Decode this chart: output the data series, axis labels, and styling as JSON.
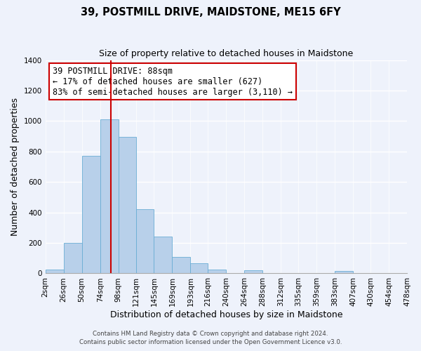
{
  "title": "39, POSTMILL DRIVE, MAIDSTONE, ME15 6FY",
  "subtitle": "Size of property relative to detached houses in Maidstone",
  "xlabel": "Distribution of detached houses by size in Maidstone",
  "ylabel": "Number of detached properties",
  "bar_edges": [
    2,
    26,
    50,
    74,
    98,
    121,
    145,
    169,
    193,
    216,
    240,
    264,
    288,
    312,
    335,
    359,
    383,
    407,
    430,
    454,
    478
  ],
  "bar_heights": [
    25,
    200,
    770,
    1010,
    895,
    420,
    240,
    110,
    65,
    25,
    0,
    20,
    0,
    0,
    0,
    0,
    15,
    0,
    0,
    0
  ],
  "bar_color": "#b8d0ea",
  "bar_edgecolor": "#6aadd5",
  "property_line_x": 88,
  "property_line_color": "#cc0000",
  "annotation_text": "39 POSTMILL DRIVE: 88sqm\n← 17% of detached houses are smaller (627)\n83% of semi-detached houses are larger (3,110) →",
  "annotation_box_edgecolor": "#cc0000",
  "ylim": [
    0,
    1400
  ],
  "yticks": [
    0,
    200,
    400,
    600,
    800,
    1000,
    1200,
    1400
  ],
  "xtick_labels": [
    "2sqm",
    "26sqm",
    "50sqm",
    "74sqm",
    "98sqm",
    "121sqm",
    "145sqm",
    "169sqm",
    "193sqm",
    "216sqm",
    "240sqm",
    "264sqm",
    "288sqm",
    "312sqm",
    "335sqm",
    "359sqm",
    "383sqm",
    "407sqm",
    "430sqm",
    "454sqm",
    "478sqm"
  ],
  "footer_line1": "Contains HM Land Registry data © Crown copyright and database right 2024.",
  "footer_line2": "Contains public sector information licensed under the Open Government Licence v3.0.",
  "bg_color": "#eef2fb",
  "plot_bg_color": "#eef2fb",
  "grid_color": "#ffffff",
  "title_fontsize": 10.5,
  "subtitle_fontsize": 9,
  "tick_fontsize": 7.5,
  "ylabel_fontsize": 9,
  "xlabel_fontsize": 9
}
